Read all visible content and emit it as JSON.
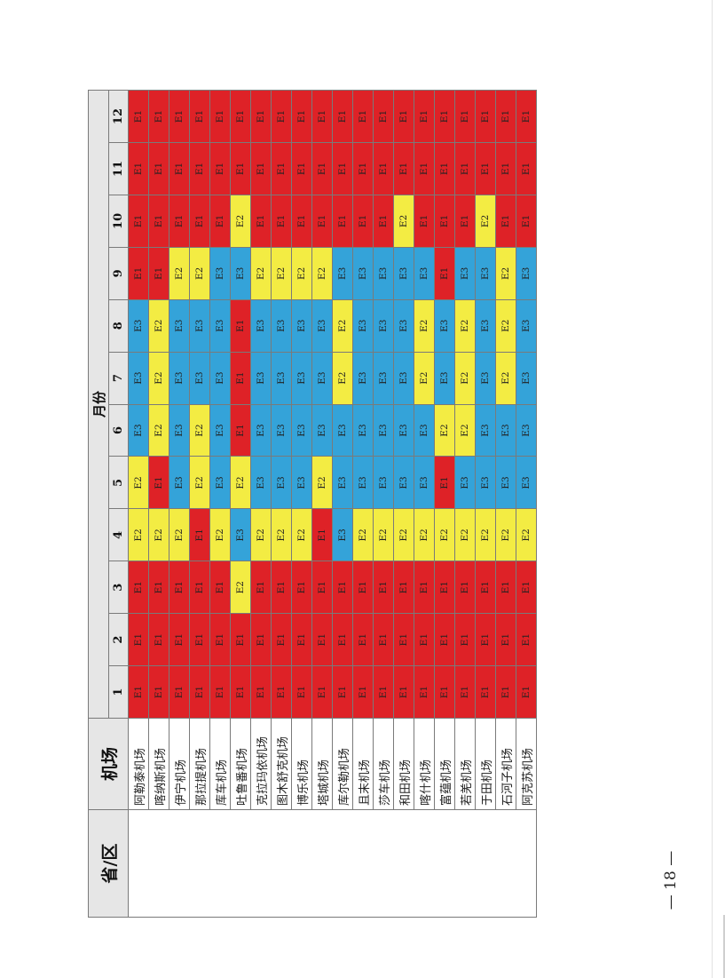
{
  "header": {
    "province": "省/区",
    "airport": "机场",
    "months_title": "月份",
    "months": [
      "1",
      "2",
      "3",
      "4",
      "5",
      "6",
      "7",
      "8",
      "9",
      "10",
      "11",
      "12"
    ]
  },
  "rows": [
    {
      "name": "阿勒泰机场",
      "levels": [
        "E1",
        "E1",
        "E1",
        "E2",
        "E2",
        "E3",
        "E3",
        "E3",
        "E1",
        "E1",
        "E1",
        "E1"
      ]
    },
    {
      "name": "喀纳斯机场",
      "levels": [
        "E1",
        "E1",
        "E1",
        "E2",
        "E1",
        "E2",
        "E2",
        "E2",
        "E1",
        "E1",
        "E1",
        "E1"
      ]
    },
    {
      "name": "伊宁机场",
      "levels": [
        "E1",
        "E1",
        "E1",
        "E2",
        "E3",
        "E3",
        "E3",
        "E3",
        "E2",
        "E1",
        "E1",
        "E1"
      ]
    },
    {
      "name": "那拉提机场",
      "levels": [
        "E1",
        "E1",
        "E1",
        "E1",
        "E2",
        "E2",
        "E3",
        "E3",
        "E2",
        "E1",
        "E1",
        "E1"
      ]
    },
    {
      "name": "库车机场",
      "levels": [
        "E1",
        "E1",
        "E1",
        "E2",
        "E3",
        "E3",
        "E3",
        "E3",
        "E3",
        "E1",
        "E1",
        "E1"
      ]
    },
    {
      "name": "吐鲁番机场",
      "levels": [
        "E1",
        "E1",
        "E2",
        "E3",
        "E2",
        "E1",
        "E1",
        "E1",
        "E3",
        "E2",
        "E1",
        "E1"
      ]
    },
    {
      "name": "克拉玛依机场",
      "levels": [
        "E1",
        "E1",
        "E1",
        "E2",
        "E3",
        "E3",
        "E3",
        "E3",
        "E2",
        "E1",
        "E1",
        "E1"
      ]
    },
    {
      "name": "图木舒克机场",
      "levels": [
        "E1",
        "E1",
        "E1",
        "E2",
        "E3",
        "E3",
        "E3",
        "E3",
        "E2",
        "E1",
        "E1",
        "E1"
      ]
    },
    {
      "name": "博乐机场",
      "levels": [
        "E1",
        "E1",
        "E1",
        "E2",
        "E3",
        "E3",
        "E3",
        "E3",
        "E2",
        "E1",
        "E1",
        "E1"
      ]
    },
    {
      "name": "塔城机场",
      "levels": [
        "E1",
        "E1",
        "E1",
        "E1",
        "E2",
        "E3",
        "E3",
        "E3",
        "E2",
        "E1",
        "E1",
        "E1"
      ]
    },
    {
      "name": "库尔勒机场",
      "levels": [
        "E1",
        "E1",
        "E1",
        "E3",
        "E3",
        "E3",
        "E2",
        "E2",
        "E3",
        "E1",
        "E1",
        "E1"
      ]
    },
    {
      "name": "且末机场",
      "levels": [
        "E1",
        "E1",
        "E1",
        "E2",
        "E3",
        "E3",
        "E3",
        "E3",
        "E3",
        "E1",
        "E1",
        "E1"
      ]
    },
    {
      "name": "莎车机场",
      "levels": [
        "E1",
        "E1",
        "E1",
        "E2",
        "E3",
        "E3",
        "E3",
        "E3",
        "E3",
        "E1",
        "E1",
        "E1"
      ]
    },
    {
      "name": "和田机场",
      "levels": [
        "E1",
        "E1",
        "E1",
        "E2",
        "E3",
        "E3",
        "E3",
        "E3",
        "E3",
        "E2",
        "E1",
        "E1"
      ]
    },
    {
      "name": "喀什机场",
      "levels": [
        "E1",
        "E1",
        "E1",
        "E2",
        "E3",
        "E3",
        "E2",
        "E2",
        "E3",
        "E1",
        "E1",
        "E1"
      ]
    },
    {
      "name": "富蕴机场",
      "levels": [
        "E1",
        "E1",
        "E1",
        "E2",
        "E1",
        "E2",
        "E3",
        "E3",
        "E1",
        "E1",
        "E1",
        "E1"
      ]
    },
    {
      "name": "若羌机场",
      "levels": [
        "E1",
        "E1",
        "E1",
        "E2",
        "E3",
        "E2",
        "E2",
        "E2",
        "E3",
        "E1",
        "E1",
        "E1"
      ]
    },
    {
      "name": "于田机场",
      "levels": [
        "E1",
        "E1",
        "E1",
        "E2",
        "E3",
        "E3",
        "E3",
        "E3",
        "E3",
        "E2",
        "E1",
        "E1"
      ]
    },
    {
      "name": "石河子机场",
      "levels": [
        "E1",
        "E1",
        "E1",
        "E2",
        "E3",
        "E3",
        "E2",
        "E2",
        "E2",
        "E1",
        "E1",
        "E1"
      ]
    },
    {
      "name": "阿克苏机场",
      "levels": [
        "E1",
        "E1",
        "E1",
        "E2",
        "E3",
        "E3",
        "E3",
        "E3",
        "E3",
        "E1",
        "E1",
        "E1"
      ]
    }
  ],
  "colors": {
    "E1": "#de2227",
    "E2": "#f3ec43",
    "E3": "#34a3d9"
  },
  "page_number": "— 18 —"
}
